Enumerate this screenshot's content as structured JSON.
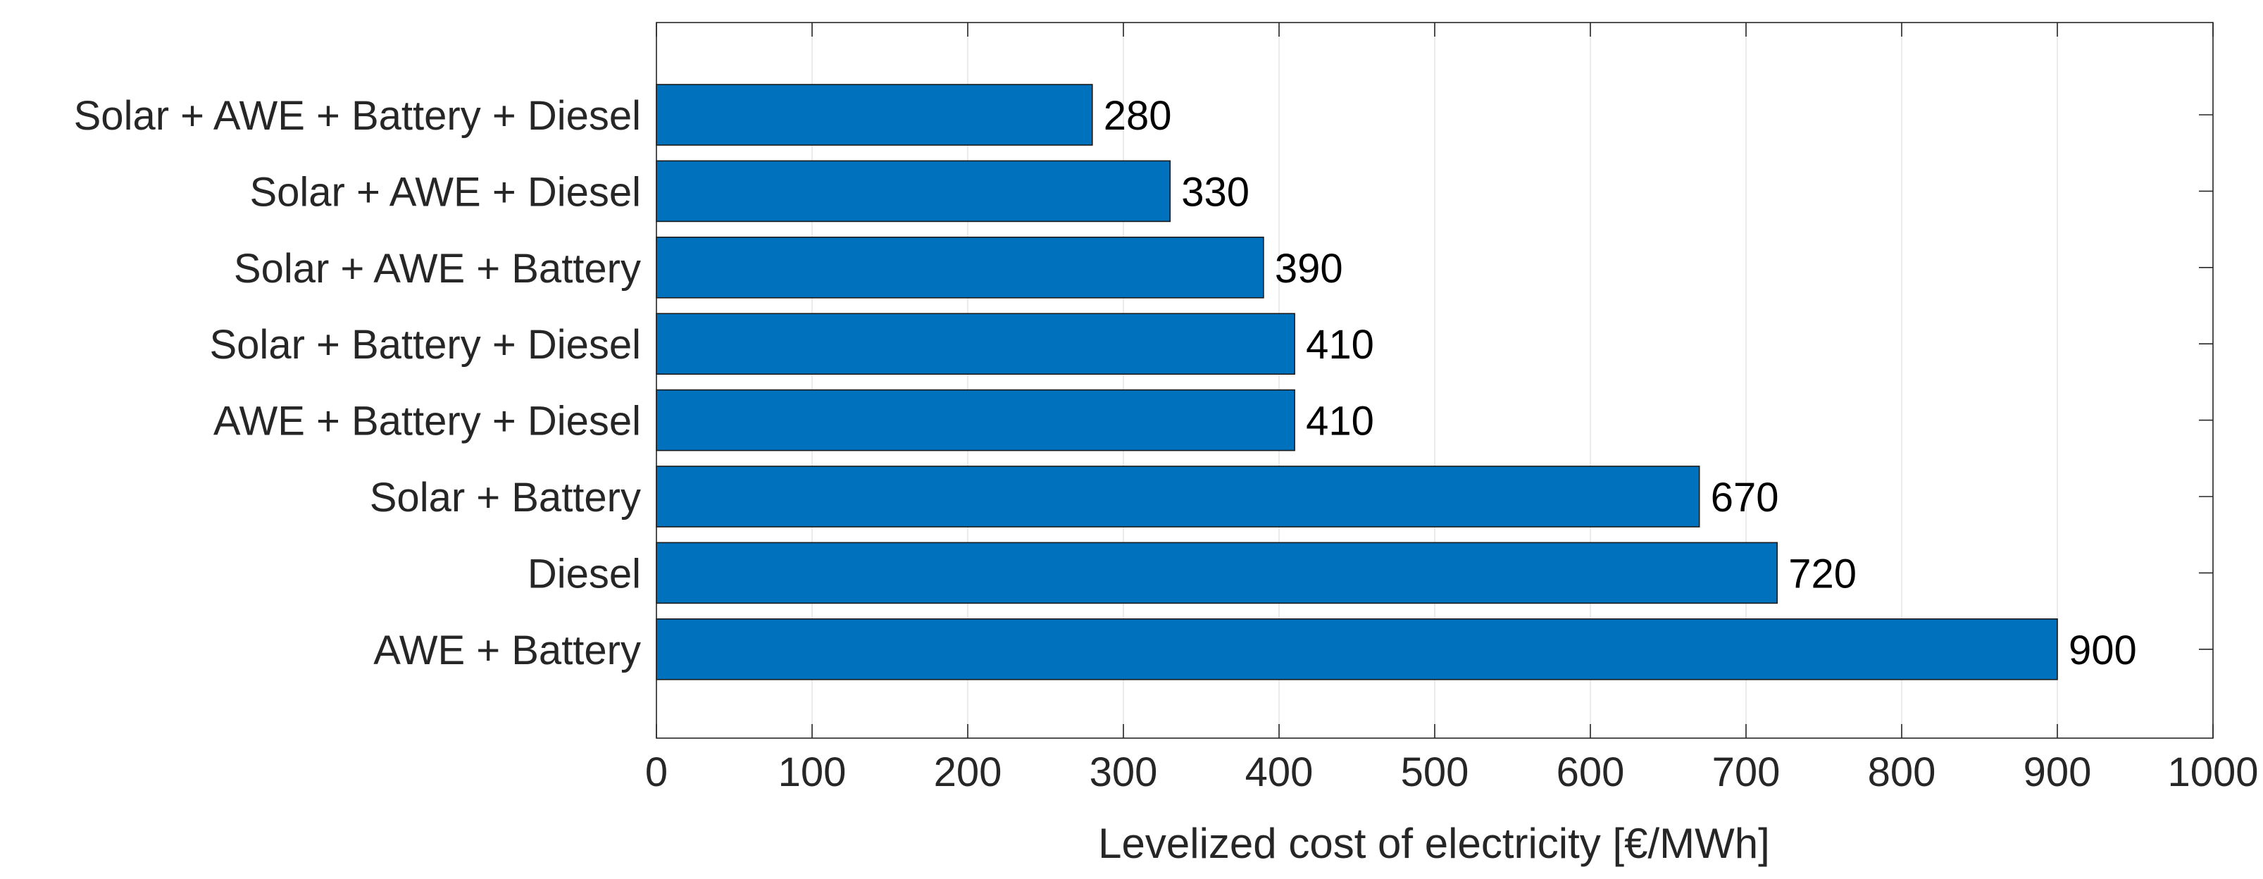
{
  "chart_data": {
    "type": "bar",
    "orientation": "horizontal",
    "title": "",
    "xlabel": "Levelized cost of electricity [€/MWh]",
    "ylabel": "",
    "categories": [
      "Solar + AWE + Battery + Diesel",
      "Solar + AWE + Diesel",
      "Solar + AWE + Battery",
      "Solar + Battery + Diesel",
      "AWE + Battery + Diesel",
      "Solar + Battery",
      "Diesel",
      "AWE + Battery"
    ],
    "values": [
      280,
      330,
      390,
      410,
      410,
      670,
      720,
      900
    ],
    "value_labels": [
      "280",
      "330",
      "390",
      "410",
      "410",
      "670",
      "720",
      "900"
    ],
    "xlim": [
      0,
      1000
    ],
    "xticks": [
      0,
      100,
      200,
      300,
      400,
      500,
      600,
      700,
      800,
      900,
      1000
    ],
    "xtick_labels": [
      "0",
      "100",
      "200",
      "300",
      "400",
      "500",
      "600",
      "700",
      "800",
      "900",
      "1000"
    ],
    "grid": "vertical",
    "bar_color": "#0072BD",
    "legend": "none"
  }
}
